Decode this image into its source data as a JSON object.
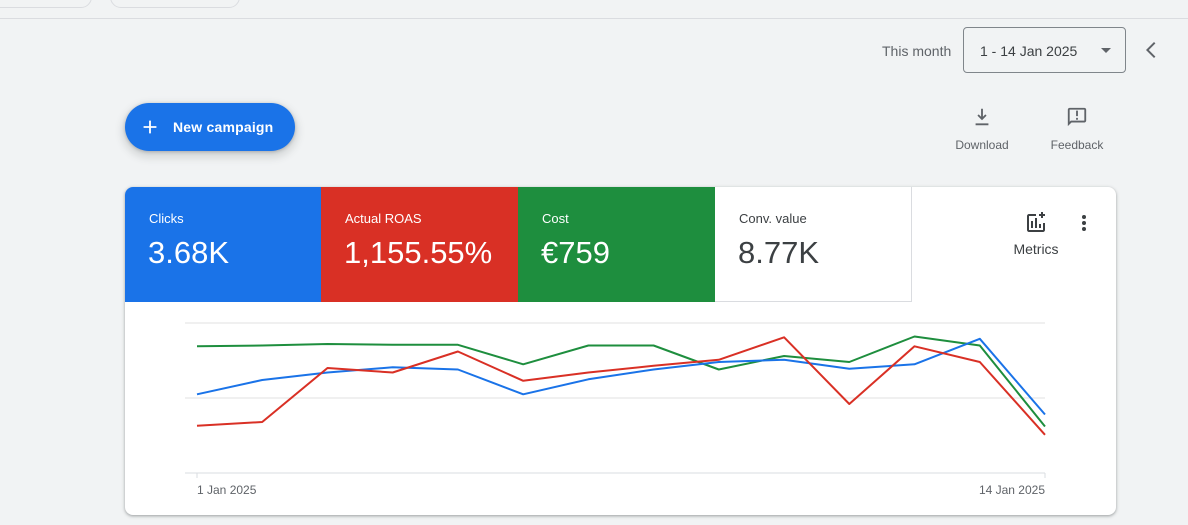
{
  "header": {
    "date_range_label": "This month",
    "date_range_value": "1 - 14 Jan 2025"
  },
  "actions": {
    "new_campaign_label": "New campaign",
    "download_label": "Download",
    "feedback_label": "Feedback"
  },
  "scorecards": [
    {
      "label": "Clicks",
      "value": "3.68K",
      "color": "#1a73e8"
    },
    {
      "label": "Actual ROAS",
      "value": "1,155.55%",
      "color": "#d93025"
    },
    {
      "label": "Cost",
      "value": "€759",
      "color": "#1e8e3e"
    },
    {
      "label": "Conv. value",
      "value": "8.77K",
      "color": "#ffffff"
    }
  ],
  "metrics_label": "Metrics",
  "chart_data": {
    "type": "line",
    "x": [
      "1 Jan 2025",
      "2 Jan 2025",
      "3 Jan 2025",
      "4 Jan 2025",
      "5 Jan 2025",
      "6 Jan 2025",
      "7 Jan 2025",
      "8 Jan 2025",
      "9 Jan 2025",
      "10 Jan 2025",
      "11 Jan 2025",
      "12 Jan 2025",
      "13 Jan 2025",
      "14 Jan 2025"
    ],
    "x_tick_labels": [
      "1 Jan 2025",
      "14 Jan 2025"
    ],
    "ylim": [
      0,
      2
    ],
    "grid": true,
    "series": [
      {
        "name": "Clicks",
        "color": "#1a73e8",
        "values": [
          1.05,
          1.24,
          1.34,
          1.41,
          1.38,
          1.05,
          1.25,
          1.38,
          1.48,
          1.51,
          1.39,
          1.45,
          1.79,
          0.78
        ]
      },
      {
        "name": "Actual ROAS",
        "color": "#d93025",
        "values": [
          0.63,
          0.68,
          1.4,
          1.34,
          1.62,
          1.23,
          1.34,
          1.43,
          1.51,
          1.81,
          0.92,
          1.69,
          1.48,
          0.51
        ]
      },
      {
        "name": "Cost",
        "color": "#1e8e3e",
        "values": [
          1.69,
          1.7,
          1.72,
          1.71,
          1.71,
          1.45,
          1.7,
          1.7,
          1.38,
          1.56,
          1.48,
          1.82,
          1.7,
          0.62
        ]
      }
    ]
  }
}
